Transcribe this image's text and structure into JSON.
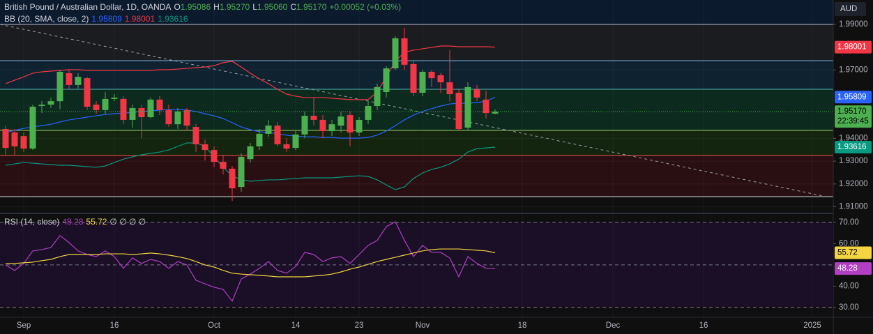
{
  "chart_data": {
    "type": "candlestick",
    "title": "British Pound / Australian Dollar, 1D, OANDA",
    "ohlc_prefixes": [
      "O",
      "H",
      "L",
      "C"
    ],
    "ohlc_labels": [
      "1.95086",
      "1.95270",
      "1.95060",
      "1.95170"
    ],
    "change": "+0.00052 (+0.03%)",
    "currency": "AUD",
    "last_price_label": "1.95170",
    "countdown": "22:39:45",
    "up_color": "#4caf50",
    "down_color": "#f23645",
    "categories": [
      null,
      null,
      "Sep",
      null,
      null,
      null,
      null,
      null,
      null,
      null,
      null,
      null,
      "16",
      null,
      null,
      null,
      null,
      null,
      null,
      null,
      null,
      null,
      null,
      "Oct",
      null,
      null,
      null,
      null,
      null,
      null,
      null,
      null,
      "14",
      null,
      null,
      null,
      null,
      null,
      null,
      "23",
      null,
      null,
      null,
      null,
      null,
      null,
      "Nov",
      null,
      null,
      null,
      null,
      null,
      null,
      null,
      null,
      null,
      null,
      "18",
      null,
      null,
      null,
      null,
      null,
      null,
      null,
      null,
      null,
      "Dec",
      null,
      null,
      null,
      null,
      null,
      null,
      null,
      null,
      null,
      "16",
      null,
      null,
      null,
      null,
      null,
      null,
      null,
      null,
      null,
      null,
      null,
      "2025",
      null
    ],
    "open": [
      1.9441,
      1.9426,
      1.941,
      1.9355,
      1.9542,
      1.9548,
      1.9563,
      1.9686,
      1.9634,
      1.9664,
      1.9548,
      1.9524,
      1.9573,
      1.9573,
      1.9481,
      1.9533,
      1.9493,
      1.957,
      1.9524,
      1.9462,
      1.9524,
      1.945,
      1.9374,
      1.9349,
      1.9297,
      1.9267,
      1.9187,
      1.9309,
      1.9365,
      1.942,
      1.9456,
      1.9374,
      1.9358,
      1.9417,
      1.9499,
      1.9481,
      1.9432,
      1.9456,
      1.9502,
      1.9426,
      1.9481,
      1.9542,
      1.9603,
      1.9707,
      1.9839,
      1.9726,
      1.96,
      1.9692,
      1.9677,
      1.9646,
      1.96,
      1.9447,
      1.9615,
      1.957,
      1.95086,
      null,
      null,
      null,
      null,
      null,
      null,
      null,
      null,
      null,
      null,
      null,
      null,
      null,
      null,
      null,
      null,
      null,
      null,
      null,
      null,
      null,
      null,
      null,
      null,
      null,
      null,
      null,
      null,
      null,
      null,
      null,
      null,
      null,
      null,
      null,
      null
    ],
    "high": [
      1.9456,
      1.9441,
      1.9426,
      1.9548,
      1.9563,
      1.9579,
      1.9701,
      1.9701,
      1.9686,
      1.967,
      1.9563,
      1.9603,
      1.9594,
      1.9585,
      1.9548,
      1.9548,
      1.9579,
      1.9585,
      1.9548,
      1.9533,
      1.9533,
      1.9462,
      1.9395,
      1.9365,
      1.9328,
      1.9279,
      1.9334,
      1.938,
      1.9441,
      1.9481,
      1.9472,
      1.9401,
      1.9432,
      1.9518,
      1.9579,
      1.9502,
      1.9481,
      1.9518,
      1.9518,
      1.9493,
      1.9563,
      1.964,
      1.9716,
      1.9848,
      1.9885,
      1.9738,
      1.9701,
      1.9701,
      1.9686,
      1.9787,
      1.9615,
      1.9646,
      1.9634,
      1.9609,
      1.9527,
      null,
      null,
      null,
      null,
      null,
      null,
      null,
      null,
      null,
      null,
      null,
      null,
      null,
      null,
      null,
      null,
      null,
      null,
      null,
      null,
      null,
      null,
      null,
      null,
      null,
      null,
      null,
      null,
      null,
      null,
      null,
      null,
      null,
      null,
      null,
      null
    ],
    "low": [
      1.9328,
      1.9328,
      1.934,
      1.9349,
      1.9511,
      1.9533,
      1.9527,
      1.9615,
      1.9619,
      1.9524,
      1.9508,
      1.9508,
      1.9563,
      1.9462,
      1.9447,
      1.9401,
      1.9487,
      1.9502,
      1.945,
      1.9441,
      1.9432,
      1.934,
      1.9303,
      1.9273,
      1.9242,
      1.9126,
      1.9166,
      1.9294,
      1.9349,
      1.9407,
      1.9365,
      1.934,
      1.9349,
      1.9401,
      1.9456,
      1.9401,
      1.941,
      1.9426,
      1.9365,
      1.941,
      1.9462,
      1.9524,
      1.9579,
      1.9701,
      1.9701,
      1.9585,
      1.9585,
      1.9625,
      1.96,
      1.9563,
      1.9432,
      1.9438,
      1.9563,
      1.9487,
      1.9506,
      null,
      null,
      null,
      null,
      null,
      null,
      null,
      null,
      null,
      null,
      null,
      null,
      null,
      null,
      null,
      null,
      null,
      null,
      null,
      null,
      null,
      null,
      null,
      null,
      null,
      null,
      null,
      null,
      null,
      null,
      null,
      null,
      null,
      null,
      null,
      null
    ],
    "close": [
      1.9358,
      1.9365,
      1.9355,
      1.9539,
      1.9548,
      1.9563,
      1.9692,
      1.9634,
      1.967,
      1.9539,
      1.9524,
      1.9573,
      1.9579,
      1.9481,
      1.9533,
      1.9493,
      1.957,
      1.9524,
      1.9462,
      1.9518,
      1.9456,
      1.9374,
      1.9349,
      1.9297,
      1.9267,
      1.9181,
      1.9319,
      1.9365,
      1.942,
      1.9456,
      1.9374,
      1.9355,
      1.9417,
      1.9499,
      1.9481,
      1.9432,
      1.9462,
      1.9496,
      1.9426,
      1.9481,
      1.9542,
      1.9625,
      1.9707,
      1.9839,
      1.9723,
      1.96,
      1.9692,
      1.9664,
      1.9646,
      1.9594,
      1.9441,
      1.9625,
      1.9579,
      1.9511,
      1.9517,
      null,
      null,
      null,
      null,
      null,
      null,
      null,
      null,
      null,
      null,
      null,
      null,
      null,
      null,
      null,
      null,
      null,
      null,
      null,
      null,
      null,
      null,
      null,
      null,
      null,
      null,
      null,
      null,
      null,
      null,
      null,
      null,
      null,
      null,
      null,
      null
    ],
    "ylim": [
      1.9074,
      2.0007
    ],
    "yticks": [
      {
        "value": 1.99,
        "label": "1.99000"
      },
      {
        "value": 1.97,
        "label": "1.97000"
      },
      {
        "value": 1.94,
        "label": "1.94000"
      },
      {
        "value": 1.93,
        "label": "1.93000"
      },
      {
        "value": 1.92,
        "label": "1.92000"
      },
      {
        "value": 1.91,
        "label": "1.91000"
      }
    ],
    "overlay_title": "BB (20, SMA, close, 2)",
    "overlays": [
      {
        "color": "#2962ff",
        "values": [
          1.9426,
          1.9435,
          1.9444,
          1.945,
          1.9456,
          1.9462,
          1.9472,
          1.9481,
          1.9487,
          1.9493,
          1.9499,
          1.9505,
          1.9508,
          1.9511,
          1.9514,
          1.9518,
          1.9521,
          1.9524,
          1.9527,
          1.9527,
          1.9524,
          1.9518,
          1.9508,
          1.9499,
          1.9487,
          1.9469,
          1.945,
          1.9438,
          1.9429,
          1.9426,
          1.942,
          1.9414,
          1.941,
          1.9407,
          1.9407,
          1.9404,
          1.9404,
          1.9401,
          1.9401,
          1.9401,
          1.9404,
          1.9414,
          1.9432,
          1.9456,
          1.9481,
          1.9502,
          1.9518,
          1.953,
          1.9542,
          1.9551,
          1.9554,
          1.9554,
          1.9557,
          1.9563,
          1.95809,
          null,
          null,
          null,
          null,
          null,
          null,
          null,
          null,
          null,
          null,
          null,
          null,
          null,
          null,
          null,
          null,
          null,
          null,
          null,
          null,
          null,
          null,
          null,
          null,
          null,
          null,
          null,
          null,
          null,
          null,
          null,
          null,
          null,
          null,
          null,
          null
        ]
      },
      {
        "color": "#f23645",
        "values": [
          1.964,
          1.9655,
          1.967,
          1.9686,
          1.9692,
          1.9695,
          1.9698,
          1.9701,
          1.9701,
          1.9698,
          1.9698,
          1.9698,
          1.9698,
          1.9698,
          1.9698,
          1.9698,
          1.9698,
          1.9701,
          1.9701,
          1.9704,
          1.9707,
          1.971,
          1.9713,
          1.9719,
          1.9732,
          1.9738,
          1.9713,
          1.9686,
          1.9661,
          1.964,
          1.9615,
          1.9594,
          1.9585,
          1.9579,
          1.9579,
          1.9579,
          1.9576,
          1.9573,
          1.957,
          1.957,
          1.957,
          1.9603,
          1.967,
          1.9738,
          1.9778,
          1.9787,
          1.9793,
          1.9799,
          1.9805,
          1.9805,
          1.9802,
          1.9802,
          1.9802,
          1.9802,
          1.98001,
          null,
          null,
          null,
          null,
          null,
          null,
          null,
          null,
          null,
          null,
          null,
          null,
          null,
          null,
          null,
          null,
          null,
          null,
          null,
          null,
          null,
          null,
          null,
          null,
          null,
          null,
          null,
          null,
          null,
          null,
          null,
          null,
          null,
          null,
          null,
          null
        ]
      },
      {
        "color": "#089981",
        "values": [
          1.9282,
          1.9288,
          1.9294,
          1.9291,
          1.9288,
          1.9285,
          1.9282,
          1.9282,
          1.9279,
          1.9276,
          1.9273,
          1.9279,
          1.9294,
          1.9309,
          1.9319,
          1.9328,
          1.9334,
          1.934,
          1.9349,
          1.9365,
          1.938,
          1.938,
          1.9365,
          1.9319,
          1.9273,
          1.9236,
          1.9218,
          1.9212,
          1.9215,
          1.9218,
          1.9218,
          1.9221,
          1.9224,
          1.9227,
          1.9227,
          1.9227,
          1.9227,
          1.923,
          1.9233,
          1.9236,
          1.9233,
          1.9218,
          1.9196,
          1.9175,
          1.9187,
          1.9224,
          1.9248,
          1.9264,
          1.9273,
          1.9288,
          1.9309,
          1.934,
          1.9355,
          1.9358,
          1.93616,
          null,
          null,
          null,
          null,
          null,
          null,
          null,
          null,
          null,
          null,
          null,
          null,
          null,
          null,
          null,
          null,
          null,
          null,
          null,
          null,
          null,
          null,
          null,
          null,
          null,
          null,
          null,
          null,
          null,
          null,
          null,
          null,
          null,
          null,
          null,
          null
        ]
      }
    ],
    "rsi": {
      "title": "RSI (14, close)",
      "empty_marks": "∅ ∅ ∅ ∅",
      "ylim": [
        25.4,
        73.9
      ],
      "yticks": [
        {
          "value": 70,
          "label": "70.00"
        },
        {
          "value": 60,
          "label": "60.00"
        },
        {
          "value": 40,
          "label": "40.00"
        },
        {
          "value": 30,
          "label": "30.00"
        }
      ],
      "levels": [
        70,
        50,
        30
      ],
      "series": [
        {
          "color": "#b03fc4",
          "values": [
            50.0,
            47.4,
            50.7,
            56.6,
            57.2,
            58.2,
            63.8,
            60.5,
            56.6,
            54.9,
            53.9,
            56.6,
            53.9,
            48.4,
            53.3,
            50.7,
            52.6,
            51.6,
            48.4,
            51.6,
            50.0,
            42.8,
            41.1,
            39.5,
            38.5,
            33.0,
            43.4,
            45.7,
            48.4,
            51.6,
            47.4,
            46.1,
            49.3,
            55.9,
            54.9,
            51.6,
            53.3,
            53.9,
            50.7,
            54.9,
            59.2,
            61.5,
            68.0,
            70.3,
            61.5,
            53.9,
            59.2,
            55.9,
            55.9,
            53.3,
            44.4,
            53.9,
            50.7,
            48.4,
            48.28,
            null,
            null,
            null,
            null,
            null,
            null,
            null,
            null,
            null,
            null,
            null,
            null,
            null,
            null,
            null,
            null,
            null,
            null,
            null,
            null,
            null,
            null,
            null,
            null,
            null,
            null,
            null,
            null,
            null,
            null,
            null,
            null,
            null,
            null,
            null,
            null
          ]
        },
        {
          "color": "#f5d442",
          "values": [
            50.7,
            50.7,
            51.0,
            51.3,
            52.0,
            52.6,
            53.9,
            54.9,
            54.9,
            54.9,
            54.9,
            55.2,
            55.2,
            55.2,
            54.9,
            55.2,
            55.6,
            55.2,
            54.6,
            53.9,
            53.0,
            51.6,
            50.0,
            49.0,
            47.4,
            46.1,
            45.7,
            45.4,
            45.1,
            44.8,
            44.4,
            44.4,
            44.4,
            44.4,
            44.8,
            45.1,
            45.7,
            46.7,
            48.0,
            49.0,
            50.3,
            51.6,
            52.6,
            53.6,
            54.6,
            55.6,
            56.6,
            57.2,
            57.5,
            57.5,
            57.5,
            57.2,
            56.9,
            56.6,
            55.72,
            null,
            null,
            null,
            null,
            null,
            null,
            null,
            null,
            null,
            null,
            null,
            null,
            null,
            null,
            null,
            null,
            null,
            null,
            null,
            null,
            null,
            null,
            null,
            null,
            null,
            null,
            null,
            null,
            null,
            null,
            null,
            null,
            null,
            null,
            null,
            null
          ]
        }
      ]
    }
  }
}
